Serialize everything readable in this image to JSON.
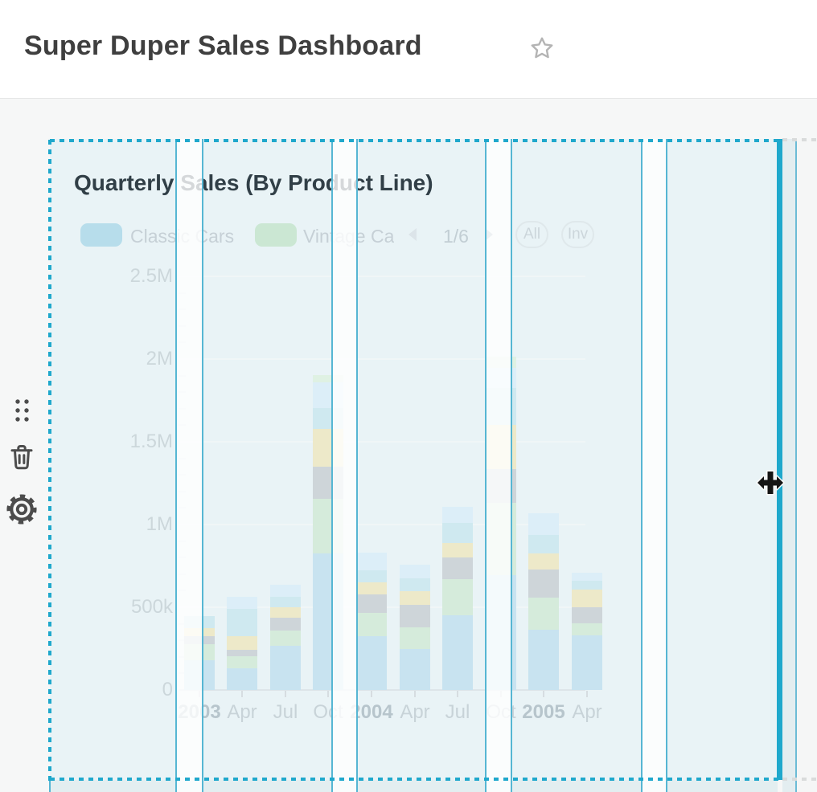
{
  "header": {
    "title": "Super Duper Sales Dashboard",
    "favorite_icon": "star-outline"
  },
  "widget_toolbar": {
    "drag_icon": "drag-handle-dots",
    "delete_icon": "trash",
    "settings_icon": "gear"
  },
  "widget": {
    "title": "Quarterly Sales (By Product Line)",
    "legend": {
      "items": [
        {
          "label": "Classic Cars",
          "color": "#b7ddeb"
        },
        {
          "label": "Vintage Ca",
          "color": "#cbe7d3"
        }
      ],
      "pagination": {
        "label": "1/6",
        "prev_icon": "chevron-left",
        "next_icon": "chevron-right"
      },
      "button_all": "All",
      "button_inv": "Inv"
    }
  },
  "cursor": {
    "type": "move"
  },
  "selection": {
    "accent_color": "#1fa8cc",
    "grid_line_color": "#56b6d3",
    "widget_fill": "#e9f3f6"
  },
  "chart_data": {
    "type": "bar",
    "stacked": true,
    "title": "Quarterly Sales (By Product Line)",
    "categories": [
      "2003",
      "Apr",
      "Jul",
      "Oct",
      "2004",
      "Apr",
      "Jul",
      "Oct",
      "2005",
      "Apr"
    ],
    "bold_categories": [
      0,
      4,
      8
    ],
    "series": [
      {
        "name": "Classic Cars",
        "color": "#c8e3f0",
        "values": [
          180000,
          131000,
          267000,
          825000,
          324000,
          248000,
          451000,
          694000,
          364000,
          330000
        ]
      },
      {
        "name": "Vintage Ca",
        "color": "#d5ebdb",
        "values": [
          95000,
          73000,
          92000,
          330000,
          141000,
          131000,
          218000,
          437000,
          194000,
          73000
        ]
      },
      {
        "name": "",
        "color": "#ced5d9",
        "values": [
          48000,
          39000,
          78000,
          194000,
          112000,
          136000,
          131000,
          204000,
          170000,
          97000
        ]
      },
      {
        "name": "",
        "color": "#ede9c9",
        "values": [
          52000,
          83000,
          63000,
          228000,
          73000,
          83000,
          87000,
          267000,
          97000,
          107000
        ]
      },
      {
        "name": "",
        "color": "#cfe9f0",
        "values": [
          70000,
          164000,
          63000,
          126000,
          73000,
          75000,
          121000,
          223000,
          112000,
          53000
        ]
      },
      {
        "name": "",
        "color": "#dceef8",
        "values": [
          0,
          73000,
          73000,
          155000,
          107000,
          82000,
          97000,
          121000,
          131000,
          49000
        ]
      },
      {
        "name": "",
        "color": "#dff1e3",
        "values": [
          0,
          0,
          0,
          44000,
          0,
          0,
          0,
          68000,
          0,
          0
        ]
      }
    ],
    "y_ticks": [
      {
        "label": "2.5M",
        "value": 2500000
      },
      {
        "label": "2M",
        "value": 2000000
      },
      {
        "label": "1.5M",
        "value": 1500000
      },
      {
        "label": "1M",
        "value": 1000000
      },
      {
        "label": "500k",
        "value": 500000
      },
      {
        "label": "0",
        "value": 0
      }
    ],
    "ylim": [
      0,
      2500000
    ],
    "xlabel": "",
    "ylabel": "",
    "legend_position": "top",
    "grid": "horizontal-major"
  }
}
